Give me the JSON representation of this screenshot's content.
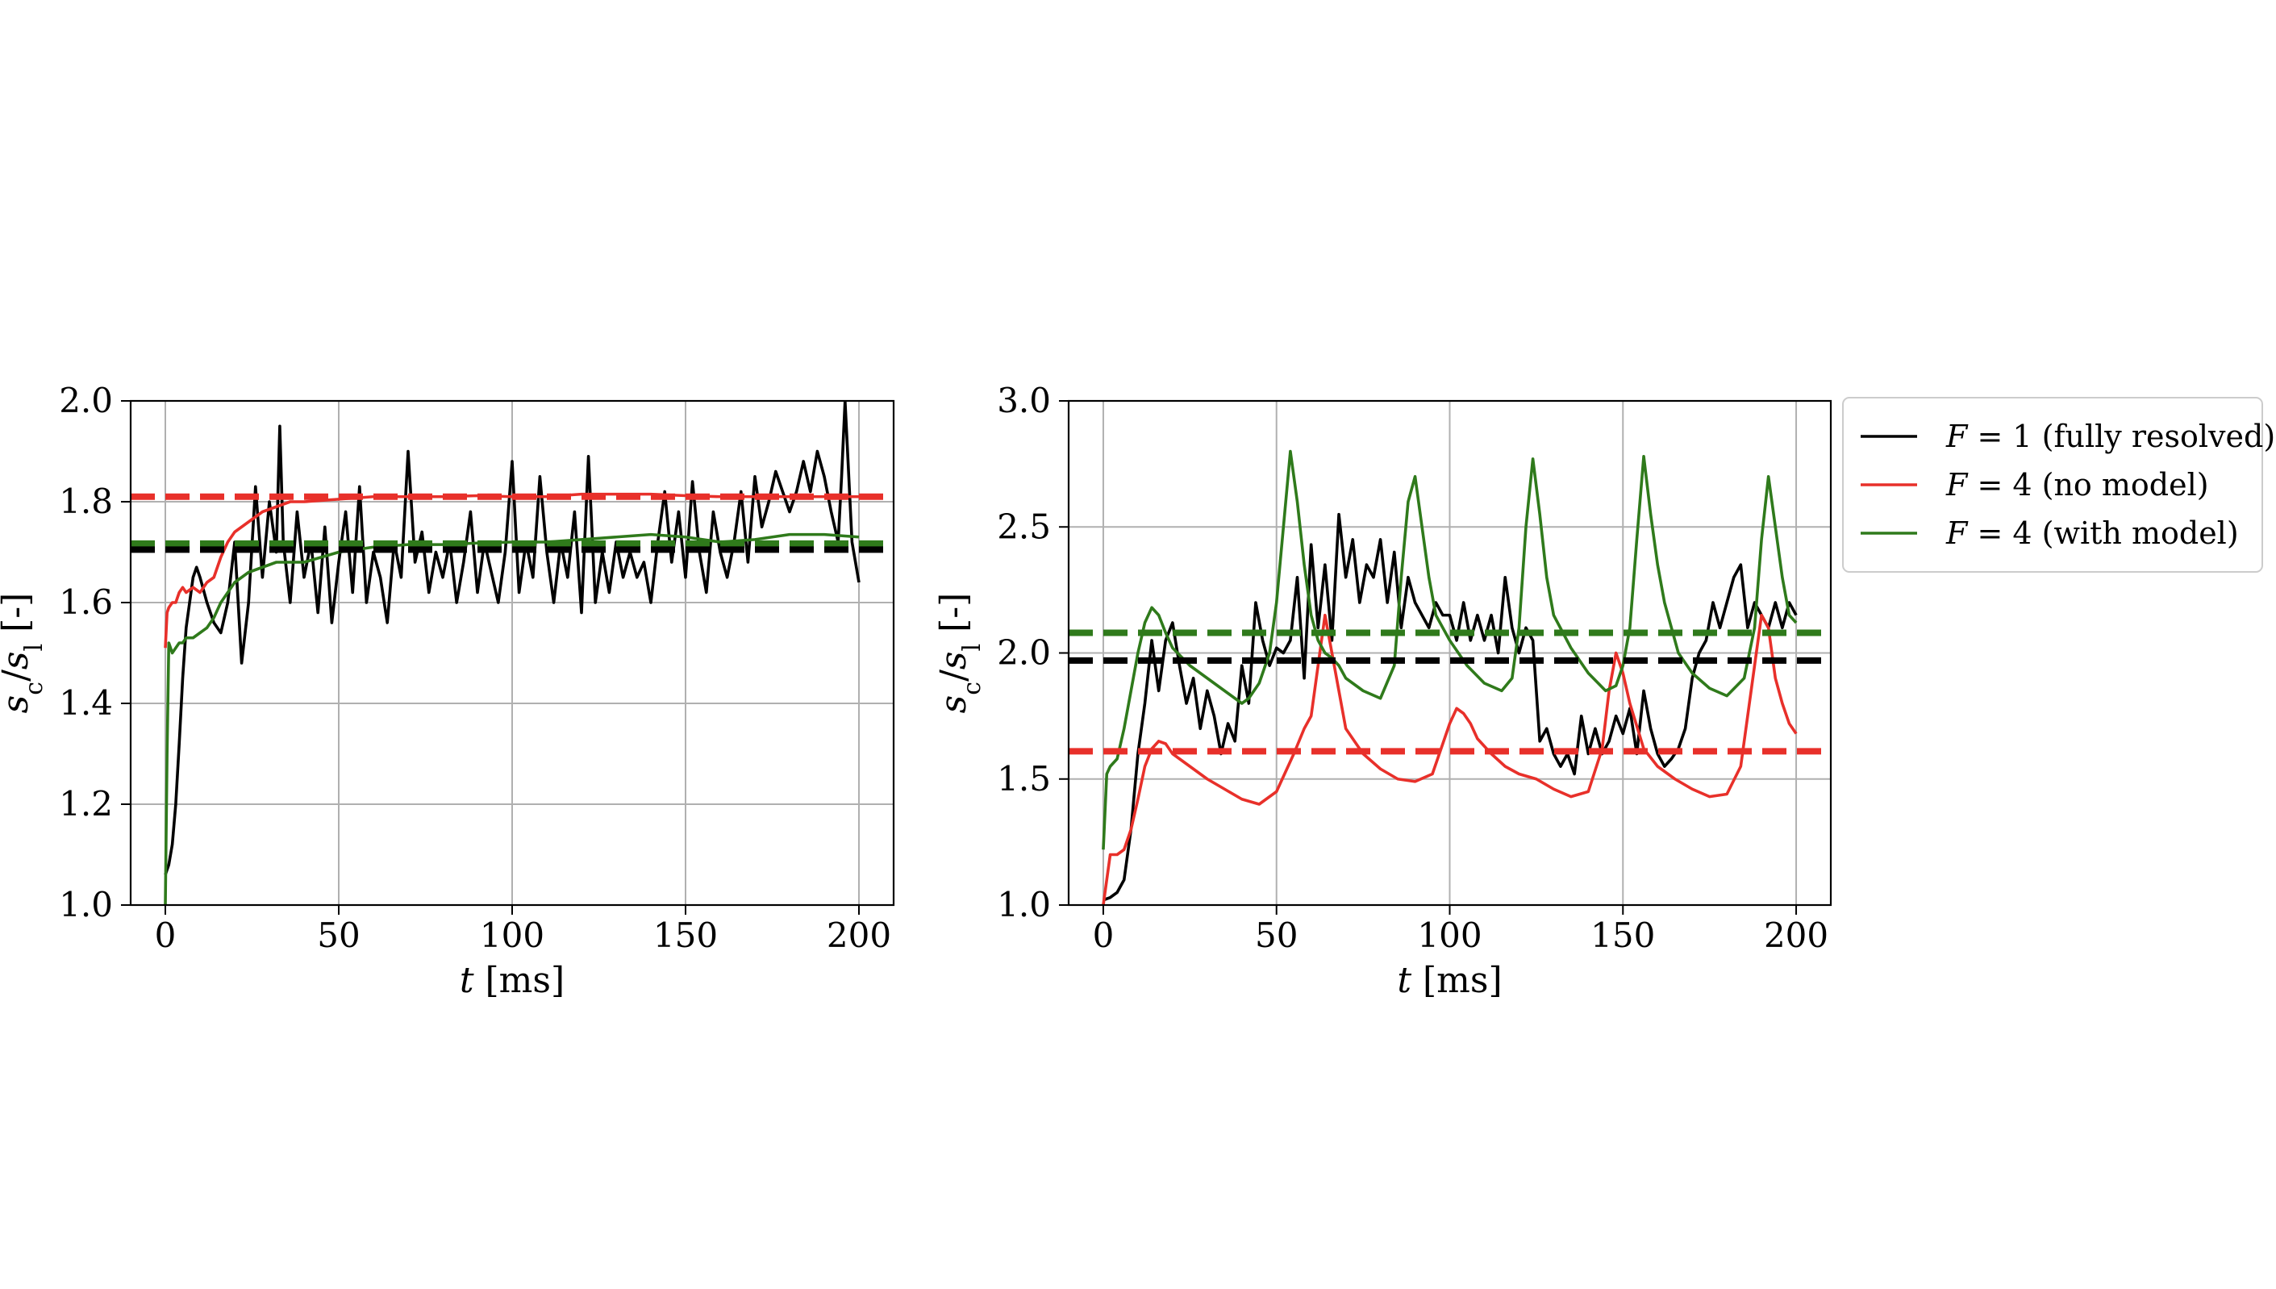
{
  "chart_data": [
    {
      "type": "line",
      "xlabel": "t [ms]",
      "ylabel": "s_c/s_l [-]",
      "xlim": [
        -10,
        210
      ],
      "ylim": [
        1.0,
        2.0
      ],
      "xticks": [
        "0",
        "50",
        "100",
        "150",
        "200"
      ],
      "yticks": [
        "1.0",
        "1.2",
        "1.4",
        "1.6",
        "1.8",
        "2.0"
      ],
      "grid": true,
      "series": [
        {
          "name": "F = 1 (fully resolved)",
          "color": "#000000",
          "x": [
            0,
            1,
            2,
            3,
            4,
            5,
            6,
            7,
            8,
            9,
            10,
            12,
            14,
            16,
            18,
            20,
            22,
            24,
            26,
            28,
            30,
            32,
            33,
            34,
            36,
            38,
            40,
            42,
            44,
            46,
            48,
            50,
            52,
            54,
            56,
            58,
            60,
            62,
            64,
            66,
            68,
            70,
            72,
            74,
            76,
            78,
            80,
            82,
            84,
            86,
            88,
            90,
            92,
            94,
            96,
            98,
            100,
            102,
            104,
            106,
            108,
            110,
            112,
            114,
            116,
            118,
            120,
            122,
            124,
            126,
            128,
            130,
            132,
            134,
            136,
            138,
            140,
            142,
            144,
            146,
            148,
            150,
            152,
            154,
            156,
            158,
            160,
            162,
            164,
            166,
            168,
            170,
            172,
            174,
            176,
            178,
            180,
            182,
            184,
            186,
            188,
            190,
            192,
            194,
            195,
            196,
            198,
            200
          ],
          "y": [
            1.06,
            1.08,
            1.12,
            1.2,
            1.32,
            1.45,
            1.55,
            1.6,
            1.65,
            1.67,
            1.65,
            1.6,
            1.56,
            1.54,
            1.6,
            1.72,
            1.48,
            1.6,
            1.83,
            1.65,
            1.8,
            1.7,
            1.95,
            1.72,
            1.6,
            1.78,
            1.65,
            1.72,
            1.58,
            1.75,
            1.56,
            1.68,
            1.78,
            1.62,
            1.83,
            1.6,
            1.7,
            1.65,
            1.56,
            1.72,
            1.65,
            1.9,
            1.68,
            1.74,
            1.62,
            1.7,
            1.65,
            1.72,
            1.6,
            1.68,
            1.78,
            1.62,
            1.72,
            1.66,
            1.6,
            1.7,
            1.88,
            1.62,
            1.72,
            1.65,
            1.85,
            1.7,
            1.6,
            1.72,
            1.65,
            1.78,
            1.58,
            1.89,
            1.6,
            1.7,
            1.62,
            1.72,
            1.65,
            1.7,
            1.65,
            1.68,
            1.6,
            1.72,
            1.82,
            1.68,
            1.78,
            1.65,
            1.84,
            1.7,
            1.62,
            1.78,
            1.7,
            1.65,
            1.72,
            1.82,
            1.68,
            1.85,
            1.75,
            1.8,
            1.86,
            1.82,
            1.78,
            1.82,
            1.88,
            1.82,
            1.9,
            1.85,
            1.78,
            1.72,
            1.85,
            2.0,
            1.72,
            1.64
          ]
        },
        {
          "name": "F = 4 (no model)",
          "color": "#e8302a",
          "x": [
            0,
            0.5,
            1,
            2,
            3,
            4,
            5,
            6,
            8,
            10,
            12,
            14,
            16,
            18,
            20,
            24,
            28,
            32,
            36,
            40,
            50,
            60,
            70,
            80,
            90,
            100,
            110,
            120,
            130,
            140,
            150,
            160,
            170,
            180,
            190,
            200
          ],
          "y": [
            1.51,
            1.58,
            1.59,
            1.6,
            1.6,
            1.62,
            1.63,
            1.62,
            1.63,
            1.62,
            1.64,
            1.65,
            1.69,
            1.72,
            1.74,
            1.76,
            1.78,
            1.79,
            1.8,
            1.8,
            1.805,
            1.81,
            1.81,
            1.81,
            1.812,
            1.81,
            1.81,
            1.815,
            1.815,
            1.815,
            1.812,
            1.81,
            1.81,
            1.81,
            1.81,
            1.81
          ]
        },
        {
          "name": "F = 4 (with model)",
          "color": "#2f7a1b",
          "x": [
            0,
            0.5,
            1,
            1.5,
            2,
            3,
            4,
            5,
            6,
            8,
            10,
            12,
            14,
            16,
            18,
            20,
            24,
            28,
            32,
            36,
            40,
            45,
            50,
            55,
            60,
            70,
            80,
            90,
            100,
            110,
            120,
            130,
            140,
            150,
            160,
            170,
            180,
            190,
            200
          ],
          "y": [
            1.0,
            1.3,
            1.52,
            1.51,
            1.5,
            1.51,
            1.52,
            1.52,
            1.53,
            1.53,
            1.54,
            1.55,
            1.57,
            1.6,
            1.62,
            1.64,
            1.66,
            1.67,
            1.68,
            1.68,
            1.68,
            1.69,
            1.7,
            1.705,
            1.71,
            1.715,
            1.715,
            1.718,
            1.72,
            1.72,
            1.725,
            1.73,
            1.735,
            1.73,
            1.72,
            1.725,
            1.735,
            1.735,
            1.73
          ]
        },
        {
          "name": "",
          "color": "#e8302a",
          "dashed": true,
          "x": [
            -10,
            210
          ],
          "y": [
            1.81,
            1.81
          ]
        },
        {
          "name": "",
          "color": "#2f7a1b",
          "dashed": true,
          "x": [
            -10,
            210
          ],
          "y": [
            1.717,
            1.717
          ]
        },
        {
          "name": "",
          "color": "#000000",
          "dashed": true,
          "x": [
            -10,
            210
          ],
          "y": [
            1.705,
            1.705
          ]
        }
      ]
    },
    {
      "type": "line",
      "xlabel": "t [ms]",
      "ylabel": "s_c/s_l [-]",
      "xlim": [
        -10,
        210
      ],
      "ylim": [
        1.0,
        3.0
      ],
      "xticks": [
        "0",
        "50",
        "100",
        "150",
        "200"
      ],
      "yticks": [
        "1.0",
        "1.5",
        "2.0",
        "2.5",
        "3.0"
      ],
      "grid": true,
      "legend": "outside-right-top",
      "series": [
        {
          "name": "F = 1 (fully resolved)",
          "color": "#000000",
          "x": [
            0,
            2,
            4,
            6,
            8,
            10,
            12,
            14,
            16,
            18,
            20,
            22,
            24,
            26,
            28,
            30,
            32,
            34,
            36,
            38,
            40,
            42,
            44,
            46,
            48,
            50,
            52,
            54,
            56,
            58,
            60,
            62,
            64,
            66,
            68,
            70,
            72,
            74,
            76,
            78,
            80,
            82,
            84,
            86,
            88,
            90,
            92,
            94,
            96,
            98,
            100,
            102,
            104,
            106,
            108,
            110,
            112,
            114,
            116,
            118,
            120,
            122,
            124,
            126,
            128,
            130,
            132,
            134,
            136,
            138,
            140,
            142,
            144,
            146,
            148,
            150,
            152,
            154,
            156,
            158,
            160,
            162,
            164,
            166,
            168,
            170,
            172,
            174,
            176,
            178,
            180,
            182,
            184,
            186,
            188,
            190,
            192,
            194,
            196,
            198,
            200
          ],
          "y": [
            1.02,
            1.03,
            1.05,
            1.1,
            1.3,
            1.6,
            1.8,
            2.05,
            1.85,
            2.05,
            2.12,
            1.95,
            1.8,
            1.9,
            1.7,
            1.85,
            1.75,
            1.6,
            1.72,
            1.65,
            1.95,
            1.8,
            2.2,
            2.05,
            1.95,
            2.02,
            2.0,
            2.05,
            2.3,
            1.9,
            2.43,
            2.1,
            2.35,
            2.05,
            2.55,
            2.3,
            2.45,
            2.2,
            2.35,
            2.3,
            2.45,
            2.2,
            2.4,
            2.1,
            2.3,
            2.2,
            2.15,
            2.1,
            2.2,
            2.15,
            2.15,
            2.05,
            2.2,
            2.05,
            2.15,
            2.05,
            2.15,
            2.0,
            2.3,
            2.1,
            2.0,
            2.1,
            2.05,
            1.65,
            1.7,
            1.6,
            1.55,
            1.6,
            1.52,
            1.75,
            1.6,
            1.7,
            1.6,
            1.65,
            1.75,
            1.68,
            1.78,
            1.6,
            1.85,
            1.7,
            1.6,
            1.55,
            1.58,
            1.62,
            1.7,
            1.9,
            2.0,
            2.05,
            2.2,
            2.1,
            2.2,
            2.3,
            2.35,
            2.1,
            2.2,
            2.15,
            2.1,
            2.2,
            2.1,
            2.2,
            2.15
          ]
        },
        {
          "name": "F = 4 (no model)",
          "color": "#e8302a",
          "x": [
            0,
            2,
            4,
            6,
            8,
            10,
            12,
            14,
            16,
            18,
            20,
            25,
            30,
            35,
            40,
            45,
            50,
            55,
            58,
            60,
            62,
            64,
            66,
            68,
            70,
            75,
            80,
            85,
            90,
            95,
            100,
            102,
            104,
            106,
            108,
            112,
            116,
            120,
            125,
            130,
            135,
            140,
            144,
            146,
            148,
            150,
            152,
            156,
            160,
            165,
            170,
            175,
            180,
            184,
            186,
            188,
            190,
            192,
            194,
            196,
            198,
            200
          ],
          "y": [
            1.0,
            1.2,
            1.2,
            1.22,
            1.3,
            1.42,
            1.55,
            1.62,
            1.65,
            1.64,
            1.6,
            1.55,
            1.5,
            1.46,
            1.42,
            1.4,
            1.45,
            1.6,
            1.7,
            1.75,
            1.95,
            2.15,
            2.0,
            1.85,
            1.7,
            1.6,
            1.54,
            1.5,
            1.49,
            1.52,
            1.72,
            1.78,
            1.76,
            1.72,
            1.66,
            1.6,
            1.55,
            1.52,
            1.5,
            1.46,
            1.43,
            1.45,
            1.62,
            1.85,
            2.0,
            1.92,
            1.8,
            1.62,
            1.55,
            1.5,
            1.46,
            1.43,
            1.44,
            1.55,
            1.75,
            1.95,
            2.15,
            2.1,
            1.9,
            1.8,
            1.72,
            1.68
          ]
        },
        {
          "name": "F = 4 (with model)",
          "color": "#2f7a1b",
          "x": [
            0,
            1,
            2,
            4,
            6,
            8,
            10,
            12,
            14,
            16,
            18,
            20,
            25,
            30,
            35,
            40,
            42,
            45,
            48,
            50,
            52,
            54,
            56,
            58,
            60,
            62,
            64,
            66,
            68,
            70,
            75,
            80,
            84,
            86,
            88,
            90,
            92,
            94,
            96,
            100,
            105,
            110,
            115,
            118,
            120,
            122,
            124,
            126,
            128,
            130,
            135,
            140,
            145,
            148,
            150,
            152,
            154,
            156,
            158,
            160,
            162,
            164,
            166,
            170,
            175,
            180,
            185,
            188,
            190,
            192,
            194,
            196,
            198,
            200
          ],
          "y": [
            1.22,
            1.52,
            1.55,
            1.58,
            1.7,
            1.85,
            2.0,
            2.12,
            2.18,
            2.15,
            2.08,
            2.02,
            1.95,
            1.9,
            1.85,
            1.8,
            1.82,
            1.88,
            2.0,
            2.2,
            2.5,
            2.8,
            2.6,
            2.35,
            2.15,
            2.05,
            2.0,
            1.98,
            1.95,
            1.9,
            1.85,
            1.82,
            1.95,
            2.3,
            2.6,
            2.7,
            2.5,
            2.3,
            2.15,
            2.05,
            1.95,
            1.88,
            1.85,
            1.9,
            2.1,
            2.5,
            2.77,
            2.55,
            2.3,
            2.15,
            2.02,
            1.92,
            1.85,
            1.87,
            1.95,
            2.1,
            2.45,
            2.78,
            2.55,
            2.35,
            2.2,
            2.1,
            2.0,
            1.92,
            1.86,
            1.83,
            1.9,
            2.1,
            2.45,
            2.7,
            2.5,
            2.3,
            2.15,
            2.12
          ]
        },
        {
          "name": "",
          "color": "#2f7a1b",
          "dashed": true,
          "x": [
            -10,
            210
          ],
          "y": [
            2.08,
            2.08
          ]
        },
        {
          "name": "",
          "color": "#000000",
          "dashed": true,
          "x": [
            -10,
            210
          ],
          "y": [
            1.97,
            1.97
          ]
        },
        {
          "name": "",
          "color": "#e8302a",
          "dashed": true,
          "x": [
            -10,
            210
          ],
          "y": [
            1.61,
            1.61
          ]
        }
      ]
    }
  ]
}
